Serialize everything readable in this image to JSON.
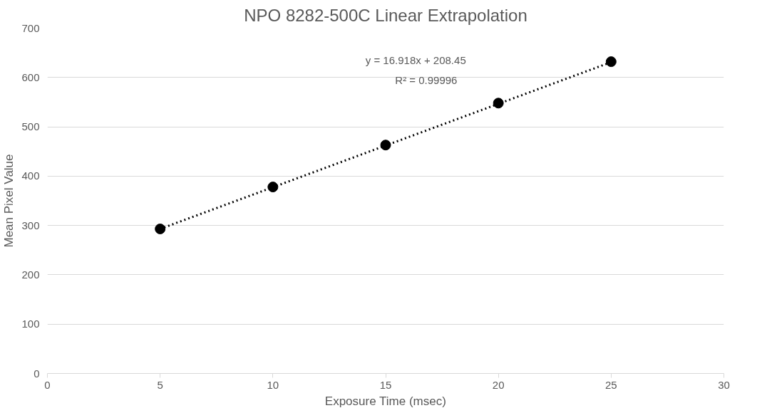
{
  "chart_data": {
    "type": "scatter",
    "title": "NPO 8282-500C Linear Extrapolation",
    "xlabel": "Exposure Time (msec)",
    "ylabel": "Mean Pixel Value",
    "x": [
      5,
      10,
      15,
      20,
      25
    ],
    "series": [
      {
        "color": "#000000",
        "marker": "circle",
        "values": [
          293,
          378,
          463,
          548,
          632
        ]
      },
      {
        "type": "line",
        "color": "#000000",
        "marker": "none",
        "line_style": "dotted",
        "x": [
          5,
          25
        ],
        "values": [
          293,
          631
        ]
      }
    ],
    "annotations": [
      "y = 16.918x + 208.45",
      "R² = 0.99996"
    ],
    "xlim": [
      0,
      30
    ],
    "xticks": [
      0,
      5,
      10,
      15,
      20,
      25,
      30
    ],
    "ylim": [
      0,
      700
    ],
    "yticks": [
      0,
      100,
      200,
      300,
      400,
      500,
      600,
      700
    ],
    "grid": "y"
  }
}
